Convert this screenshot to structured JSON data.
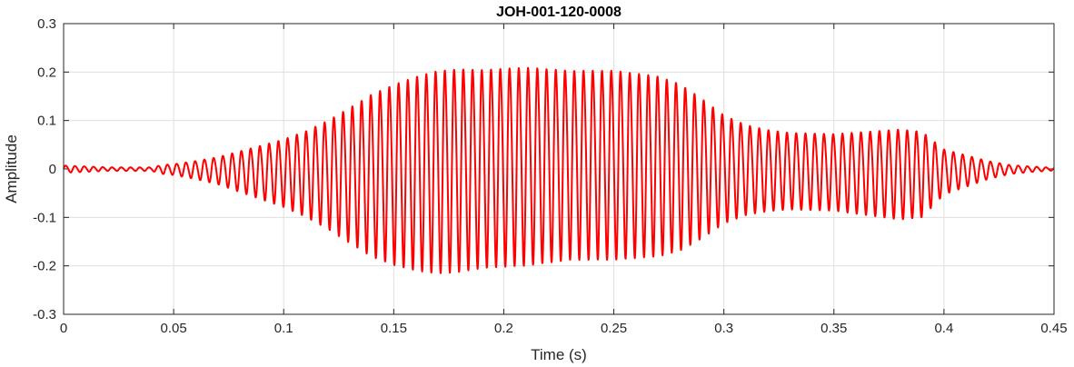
{
  "chart_data": {
    "type": "line",
    "title": "JOH-001-120-0008",
    "xlabel": "Time (s)",
    "ylabel": "Amplitude",
    "xlim": [
      0,
      0.45
    ],
    "ylim": [
      -0.3,
      0.3
    ],
    "xticks": [
      0,
      0.05,
      0.1,
      0.15,
      0.2,
      0.25,
      0.3,
      0.35,
      0.4,
      0.45
    ],
    "xtick_labels": [
      "0",
      "0.05",
      "0.1",
      "0.15",
      "0.2",
      "0.25",
      "0.3",
      "0.35",
      "0.4",
      "0.45"
    ],
    "yticks": [
      -0.3,
      -0.2,
      -0.1,
      0,
      0.1,
      0.2,
      0.3
    ],
    "ytick_labels": [
      "-0.3",
      "-0.2",
      "-0.1",
      "0",
      "0.1",
      "0.2",
      "0.3"
    ],
    "grid": true,
    "legend": "none",
    "series_color": "#ff0000",
    "envelope": {
      "t": [
        0,
        0.02,
        0.04,
        0.045,
        0.05,
        0.06,
        0.07,
        0.08,
        0.09,
        0.1,
        0.11,
        0.12,
        0.13,
        0.14,
        0.15,
        0.16,
        0.17,
        0.18,
        0.19,
        0.2,
        0.21,
        0.22,
        0.23,
        0.24,
        0.25,
        0.26,
        0.27,
        0.28,
        0.29,
        0.3,
        0.31,
        0.32,
        0.33,
        0.34,
        0.35,
        0.36,
        0.37,
        0.38,
        0.39,
        0.4,
        0.41,
        0.42,
        0.43,
        0.44,
        0.45
      ],
      "amp": [
        0.008,
        0.004,
        0.004,
        0.01,
        0.012,
        0.02,
        0.03,
        0.045,
        0.06,
        0.075,
        0.095,
        0.12,
        0.15,
        0.18,
        0.2,
        0.215,
        0.225,
        0.225,
        0.22,
        0.22,
        0.22,
        0.215,
        0.21,
        0.21,
        0.21,
        0.205,
        0.2,
        0.185,
        0.155,
        0.12,
        0.1,
        0.09,
        0.085,
        0.085,
        0.085,
        0.09,
        0.095,
        0.1,
        0.095,
        0.05,
        0.035,
        0.02,
        0.01,
        0.006,
        0.003
      ]
    },
    "fundamental_hz": 238
  }
}
